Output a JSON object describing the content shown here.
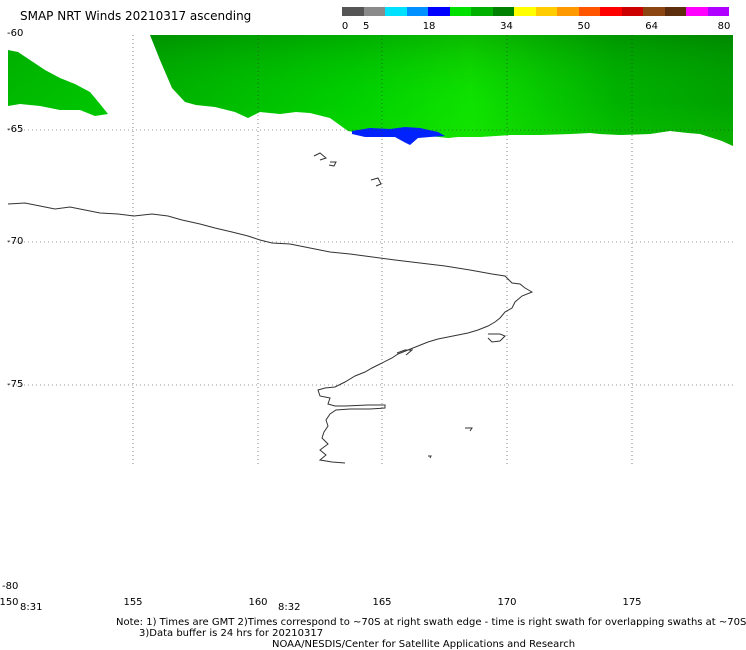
{
  "title": "SMAP NRT Winds 20210317 ascending",
  "color_scale": {
    "labels": [
      {
        "text": "0",
        "value": 0
      },
      {
        "text": "5",
        "value": 5
      },
      {
        "text": "18",
        "value": 18
      },
      {
        "text": "34",
        "value": 34
      },
      {
        "text": "50",
        "value": 50
      },
      {
        "text": "64",
        "value": 64
      },
      {
        "text": "80",
        "value": 80
      }
    ],
    "colors": [
      "#555555",
      "#8a8a8a",
      "#00e0ff",
      "#0090ff",
      "#0000ff",
      "#00e000",
      "#00b000",
      "#008000",
      "#ffff00",
      "#ffcc00",
      "#ff9900",
      "#ff5500",
      "#ff0000",
      "#cc0000",
      "#8b4513",
      "#5c2e0e",
      "#ff00ff",
      "#b000ff"
    ]
  },
  "latitude_labels": [
    "-60",
    "-65",
    "-70",
    "-75",
    "-80"
  ],
  "longitude_labels": [
    "150",
    "155",
    "160",
    "165",
    "170",
    "175"
  ],
  "time_labels": [
    "8:31",
    "8:32"
  ],
  "notes": [
    "Note: 1) Times are GMT 2)Times correspond to ~70S at right swath edge - time is right swath for overlapping swaths at ~70S",
    "3)Data buffer is 24 hrs for 20210317",
    "NOAA/NESDIS/Center for Satellite Applications and Research"
  ],
  "colors": {
    "swath_green_dark": "#008c00",
    "swath_green_light": "#22dd00",
    "swath_blue": "#0022ff",
    "coastline": "#333333",
    "grid": "#333333"
  }
}
